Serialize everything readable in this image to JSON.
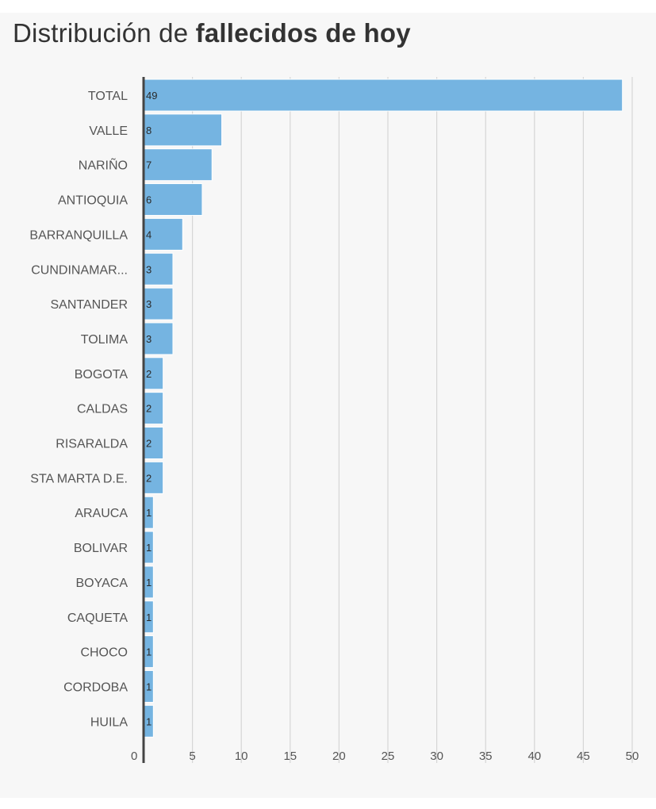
{
  "chart_data": {
    "type": "bar",
    "orientation": "horizontal",
    "title_prefix": "Distribución de ",
    "title_bold": "fallecidos de hoy",
    "categories": [
      "TOTAL",
      "VALLE",
      "NARIÑO",
      "ANTIOQUIA",
      "BARRANQUILLA",
      "CUNDINAMAR...",
      "SANTANDER",
      "TOLIMA",
      "BOGOTA",
      "CALDAS",
      "RISARALDA",
      "STA MARTA D.E.",
      "ARAUCA",
      "BOLIVAR",
      "BOYACA",
      "CAQUETA",
      "CHOCO",
      "CORDOBA",
      "HUILA"
    ],
    "values": [
      49,
      8,
      7,
      6,
      4,
      3,
      3,
      3,
      2,
      2,
      2,
      2,
      1,
      1,
      1,
      1,
      1,
      1,
      1
    ],
    "xlim": [
      0,
      50
    ],
    "xticks": [
      0,
      5,
      10,
      15,
      20,
      25,
      30,
      35,
      40,
      45,
      50
    ],
    "grid": true,
    "data_labels": true,
    "bar_color": "#75b4e1",
    "bar_outline_color": "#ffffff",
    "axis_color": "#444444",
    "grid_color": "#d6d6d6"
  }
}
